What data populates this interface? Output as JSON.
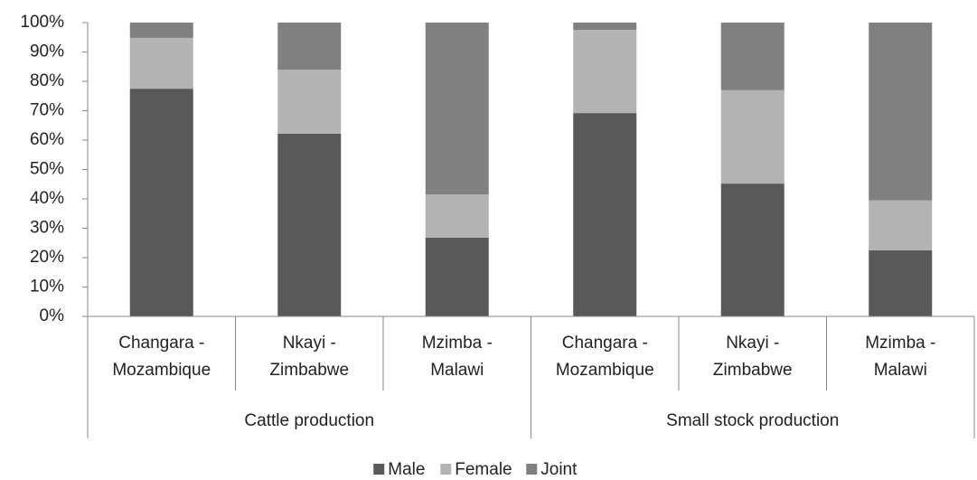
{
  "chart_data": {
    "type": "stacked_bar",
    "categories": [
      "Changara - Mozambique",
      "Nkayi - Zimbabwe",
      "Mzimba - Malawi",
      "Changara - Mozambique",
      "Nkayi - Zimbabwe",
      "Mzimba - Malawi"
    ],
    "groups": [
      "Cattle production",
      "Small stock production"
    ],
    "series": [
      {
        "name": "Male",
        "color": "#595959",
        "values": [
          77.5,
          62.2,
          26.8,
          69.2,
          45.2,
          22.5
        ]
      },
      {
        "name": "Female",
        "color": "#b3b3b3",
        "values": [
          17.3,
          21.8,
          14.7,
          28.3,
          31.8,
          17
        ]
      },
      {
        "name": "Joint",
        "color": "#808080",
        "values": [
          5.2,
          16,
          58.5,
          2.5,
          23,
          60.5
        ]
      }
    ],
    "ylim": [
      0,
      100
    ],
    "yticks": [
      {
        "value": 0,
        "label": "0%"
      },
      {
        "value": 10,
        "label": "10%"
      },
      {
        "value": 20,
        "label": "20%"
      },
      {
        "value": 30,
        "label": "30%"
      },
      {
        "value": 40,
        "label": "40%"
      },
      {
        "value": 50,
        "label": "50%"
      },
      {
        "value": 60,
        "label": "60%"
      },
      {
        "value": 70,
        "label": "70%"
      },
      {
        "value": 80,
        "label": "80%"
      },
      {
        "value": 90,
        "label": "90%"
      },
      {
        "value": 100,
        "label": "100%"
      }
    ],
    "legend": "bottom"
  }
}
